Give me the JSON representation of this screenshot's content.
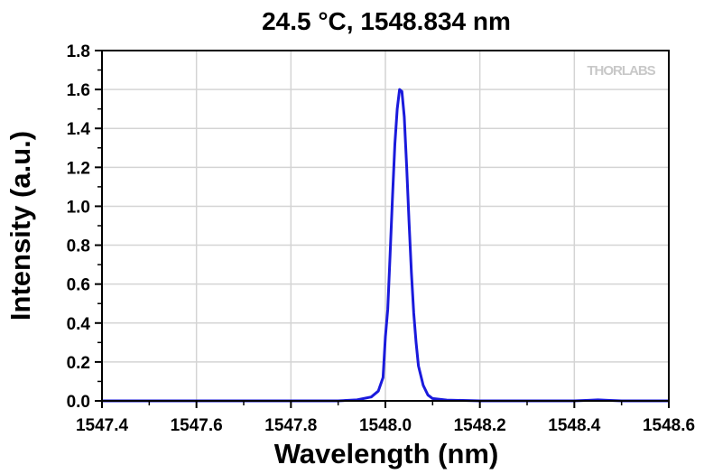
{
  "chart_data": {
    "type": "line",
    "title": "24.5 °C, 1548.834 nm",
    "xlabel": "Wavelength (nm)",
    "ylabel": "Intensity (a.u.)",
    "xlim": [
      1547.4,
      1548.6
    ],
    "ylim": [
      0.0,
      1.8
    ],
    "xticks": [
      "1547.4",
      "1547.6",
      "1547.8",
      "1548.0",
      "1548.2",
      "1548.4",
      "1548.6"
    ],
    "yticks": [
      "0.0",
      "0.2",
      "0.4",
      "0.6",
      "0.8",
      "1.0",
      "1.2",
      "1.4",
      "1.6",
      "1.8"
    ],
    "grid": true,
    "watermark": "THORLABS",
    "series_color": "#1a1adc",
    "series": [
      {
        "x": [
          1547.4,
          1547.8,
          1547.9,
          1547.94,
          1547.97,
          1547.985,
          1547.995,
          1548.0,
          1548.005,
          1548.01,
          1548.015,
          1548.02,
          1548.025,
          1548.03,
          1548.035,
          1548.04,
          1548.045,
          1548.05,
          1548.055,
          1548.06,
          1548.065,
          1548.07,
          1548.08,
          1548.09,
          1548.1,
          1548.13,
          1548.2,
          1548.4,
          1548.43,
          1548.45,
          1548.47,
          1548.5,
          1548.6
        ],
        "y": [
          0.0,
          0.0,
          0.0,
          0.005,
          0.02,
          0.05,
          0.12,
          0.33,
          0.47,
          0.75,
          1.05,
          1.32,
          1.5,
          1.6,
          1.59,
          1.46,
          1.2,
          0.92,
          0.66,
          0.45,
          0.3,
          0.18,
          0.08,
          0.03,
          0.012,
          0.004,
          0.0,
          0.0,
          0.003,
          0.005,
          0.003,
          0.0,
          0.0
        ]
      }
    ]
  }
}
